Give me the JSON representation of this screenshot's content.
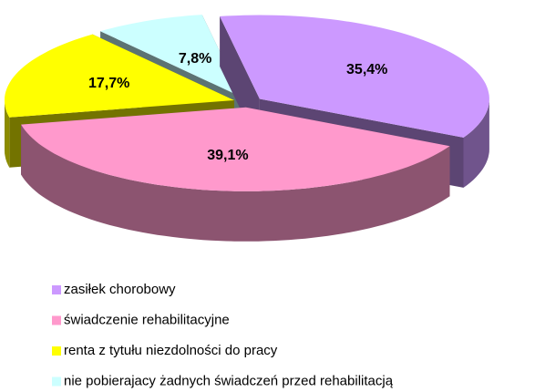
{
  "chart_data": {
    "type": "pie",
    "categories": [
      "zasiłek chorobowy",
      "świadczenie rehabilitacyjne",
      "renta z tytułu niezdolności do pracy",
      "nie pobierajacy żadnych świadczeń przed rehabilitacją"
    ],
    "values": [
      35.4,
      39.1,
      17.7,
      7.8
    ],
    "value_labels": [
      "35,4%",
      "39,1%",
      "17,7%",
      "7,8%"
    ],
    "colors": [
      "#cc99ff",
      "#ff99cc",
      "#ffff00",
      "#ccffff"
    ],
    "legend": "bottom"
  }
}
